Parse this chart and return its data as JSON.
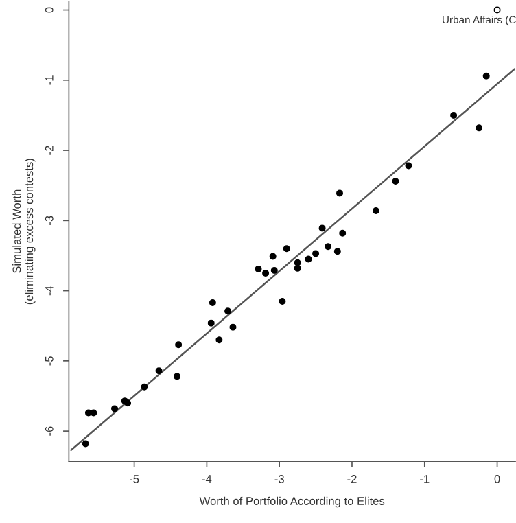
{
  "chart_data": {
    "type": "scatter",
    "xlabel": "Worth of Portfolio According to Elites",
    "ylabel": "Simulated Worth\n(eliminating excess contests)",
    "xlim": [
      -5.9,
      0.25
    ],
    "ylim": [
      -6.43,
      0.12
    ],
    "xticks": [
      -5,
      -4,
      -3,
      -2,
      -1,
      0
    ],
    "yticks": [
      -6,
      -5,
      -4,
      -3,
      -2,
      -1,
      0
    ],
    "grid": false,
    "legend": false,
    "series": [
      {
        "color": "#000000",
        "marker": "circle",
        "x": [
          -0.15,
          -0.6,
          -0.25,
          -1.22,
          -1.4,
          -2.17,
          -1.67,
          -2.41,
          -2.13,
          -2.33,
          -2.2,
          -2.5,
          -2.9,
          -3.09,
          -2.6,
          -2.75,
          -2.75,
          -3.29,
          -3.19,
          -3.07,
          -2.96,
          -3.92,
          -3.71,
          -3.94,
          -3.64,
          -3.83,
          -4.39,
          -4.41,
          -4.66,
          -4.86,
          -5.13,
          -5.09,
          -5.27,
          -5.63,
          -5.56,
          -5.67
        ],
        "values": [
          -0.94,
          -1.5,
          -1.68,
          -2.22,
          -2.44,
          -2.61,
          -2.86,
          -3.11,
          -3.18,
          -3.37,
          -3.44,
          -3.47,
          -3.4,
          -3.51,
          -3.55,
          -3.6,
          -3.68,
          -3.69,
          -3.75,
          -3.71,
          -4.15,
          -4.17,
          -4.29,
          -4.46,
          -4.52,
          -4.7,
          -4.77,
          -5.22,
          -5.14,
          -5.37,
          -5.57,
          -5.6,
          -5.68,
          -5.74,
          -5.74,
          -6.18
        ]
      },
      {
        "color": "#ffffff",
        "marker": "circle",
        "x": [
          0
        ],
        "values": [
          0
        ]
      },
      {
        "type": "line",
        "color": "#555555",
        "line_style": "solid",
        "x": [
          -5.87,
          0.24
        ],
        "values": [
          -6.27,
          -0.84
        ]
      }
    ],
    "annotations": [
      {
        "text": "Urban Affairs (C",
        "x": 0,
        "y": 0
      }
    ]
  }
}
